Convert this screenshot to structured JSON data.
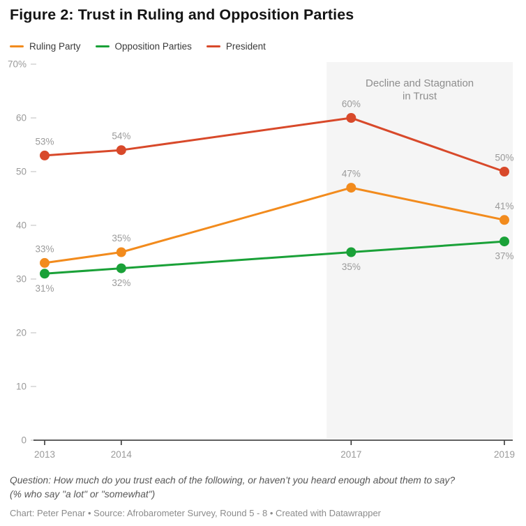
{
  "title": "Figure 2: Trust in Ruling and Opposition Parties",
  "legend": {
    "items": [
      {
        "label": "Ruling Party",
        "color": "#f28b1d"
      },
      {
        "label": "Opposition Parties",
        "color": "#1aa138"
      },
      {
        "label": "President",
        "color": "#d8492a"
      }
    ]
  },
  "chart_data": {
    "type": "line",
    "x": [
      2013,
      2014,
      2017,
      2019
    ],
    "series": [
      {
        "name": "Ruling Party",
        "color": "#f28b1d",
        "values": [
          33,
          35,
          47,
          41
        ],
        "label_position": "above"
      },
      {
        "name": "Opposition Parties",
        "color": "#1aa138",
        "values": [
          31,
          32,
          35,
          37
        ],
        "label_position": "below"
      },
      {
        "name": "President",
        "color": "#d8492a",
        "values": [
          53,
          54,
          60,
          50
        ],
        "label_position": "above"
      }
    ],
    "ylim": [
      0,
      70
    ],
    "yticks": [
      {
        "value": 70,
        "label": "70%"
      },
      {
        "value": 60,
        "label": "60"
      },
      {
        "value": 50,
        "label": "50"
      },
      {
        "value": 40,
        "label": "40"
      },
      {
        "value": 30,
        "label": "30"
      },
      {
        "value": 20,
        "label": "20"
      },
      {
        "value": 10,
        "label": "10"
      },
      {
        "value": 0,
        "label": "0"
      }
    ],
    "grid": "off",
    "legend_position": "top",
    "data_label_format": "{value}%",
    "highlight_region": {
      "start_year": 2016.68,
      "end_year": 2019.11,
      "color": "#f5f5f5",
      "annotation": "Decline and Stagnation\nin Trust"
    }
  },
  "footer": {
    "question_line1": "Question: How much do you trust each of the following, or haven’t you heard enough about them to say?",
    "question_line2": "(% who say \"a lot\" or \"somewhat\")",
    "credit": "Chart: Peter Penar • Source: Afrobarometer Survey, Round 5 - 8 • Created with Datawrapper"
  },
  "colors": {
    "axis": "#2b2b2b",
    "tick_dash": "#d2d2d2",
    "tick_label": "#9a9a9a",
    "data_label": "#9a9a9a",
    "annotation_text": "#8d8d8d"
  }
}
